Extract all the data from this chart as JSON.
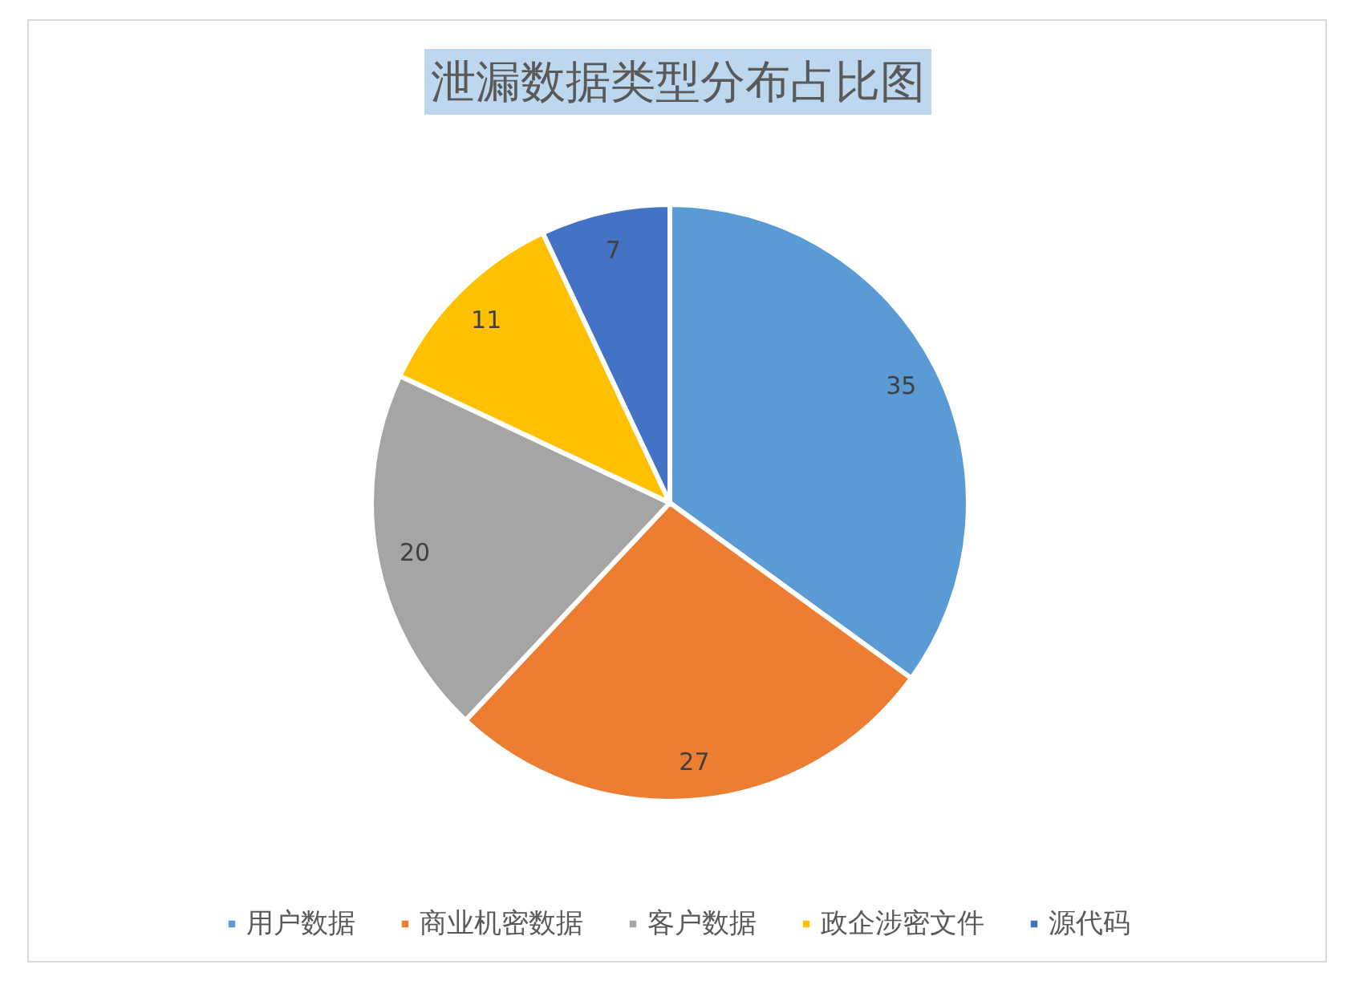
{
  "chart_data": {
    "type": "pie",
    "title": "泄漏数据类型分布占比图",
    "categories": [
      "用户数据",
      "商业机密数据",
      "客户数据",
      "政企涉密文件",
      "源代码"
    ],
    "values": [
      35,
      27,
      20,
      11,
      7
    ],
    "colors": [
      "#5b9bd5",
      "#ed7d31",
      "#a5a5a5",
      "#ffc000",
      "#4472c4"
    ],
    "data_labels": true,
    "legend": "bottom"
  }
}
